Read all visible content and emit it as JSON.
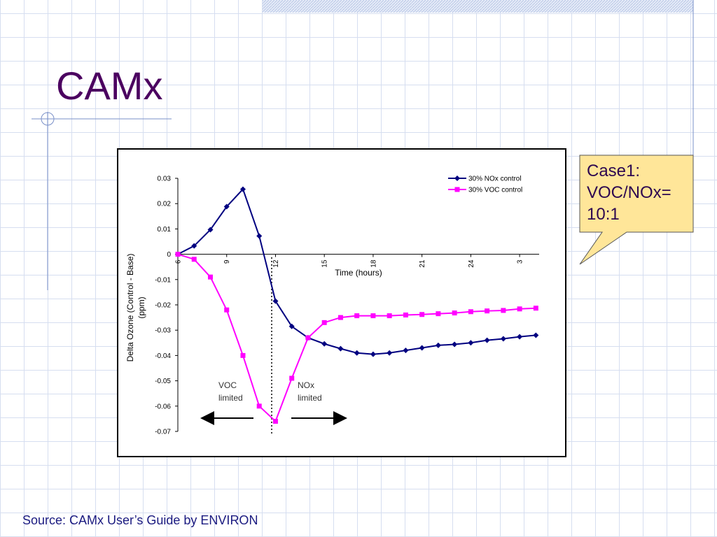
{
  "slide": {
    "title": "CAMx",
    "callout": [
      "Case1:",
      "VOC/NOx=",
      "10:1"
    ],
    "source": "Source: CAMx User’s Guide by ENVIRON"
  },
  "chart_data": {
    "type": "line",
    "xlabel": "Time (hours)",
    "ylabel": [
      "Delta Ozone  (Control - Base)",
      "(ppm)"
    ],
    "x": [
      6,
      7,
      8,
      9,
      10,
      11,
      12,
      13,
      14,
      15,
      16,
      17,
      18,
      19,
      20,
      21,
      22,
      23,
      24,
      25,
      26,
      27,
      28
    ],
    "series": [
      {
        "name": "30% NOx control",
        "color": "#000080",
        "marker": "diamond",
        "values": [
          0,
          0.0033,
          0.0097,
          0.0188,
          0.0257,
          0.0072,
          -0.0185,
          -0.0285,
          -0.033,
          -0.0354,
          -0.0373,
          -0.039,
          -0.0395,
          -0.039,
          -0.038,
          -0.037,
          -0.036,
          -0.0356,
          -0.035,
          -0.034,
          -0.0334,
          -0.0326,
          -0.032
        ]
      },
      {
        "name": "30% VOC control",
        "color": "#ff00ff",
        "marker": "square",
        "values": [
          0,
          -0.002,
          -0.009,
          -0.022,
          -0.04,
          -0.06,
          -0.066,
          -0.049,
          -0.033,
          -0.027,
          -0.025,
          -0.0243,
          -0.0243,
          -0.0243,
          -0.024,
          -0.0238,
          -0.0235,
          -0.0232,
          -0.0227,
          -0.0224,
          -0.0222,
          -0.0216,
          -0.0213
        ]
      }
    ],
    "xlim": [
      6,
      28.2
    ],
    "xticks": [
      6,
      9,
      12,
      15,
      18,
      21,
      24,
      {
        "value": 27,
        "label": "3"
      }
    ],
    "ylim": [
      -0.07,
      0.03
    ],
    "yticks": [
      0.03,
      0.02,
      0.01,
      0,
      -0.01,
      -0.02,
      -0.03,
      -0.04,
      -0.05,
      -0.06,
      -0.07
    ],
    "annotations": [
      [
        "VOC",
        "limited"
      ],
      [
        "NOx",
        "limited"
      ]
    ],
    "legend": "upper right"
  }
}
